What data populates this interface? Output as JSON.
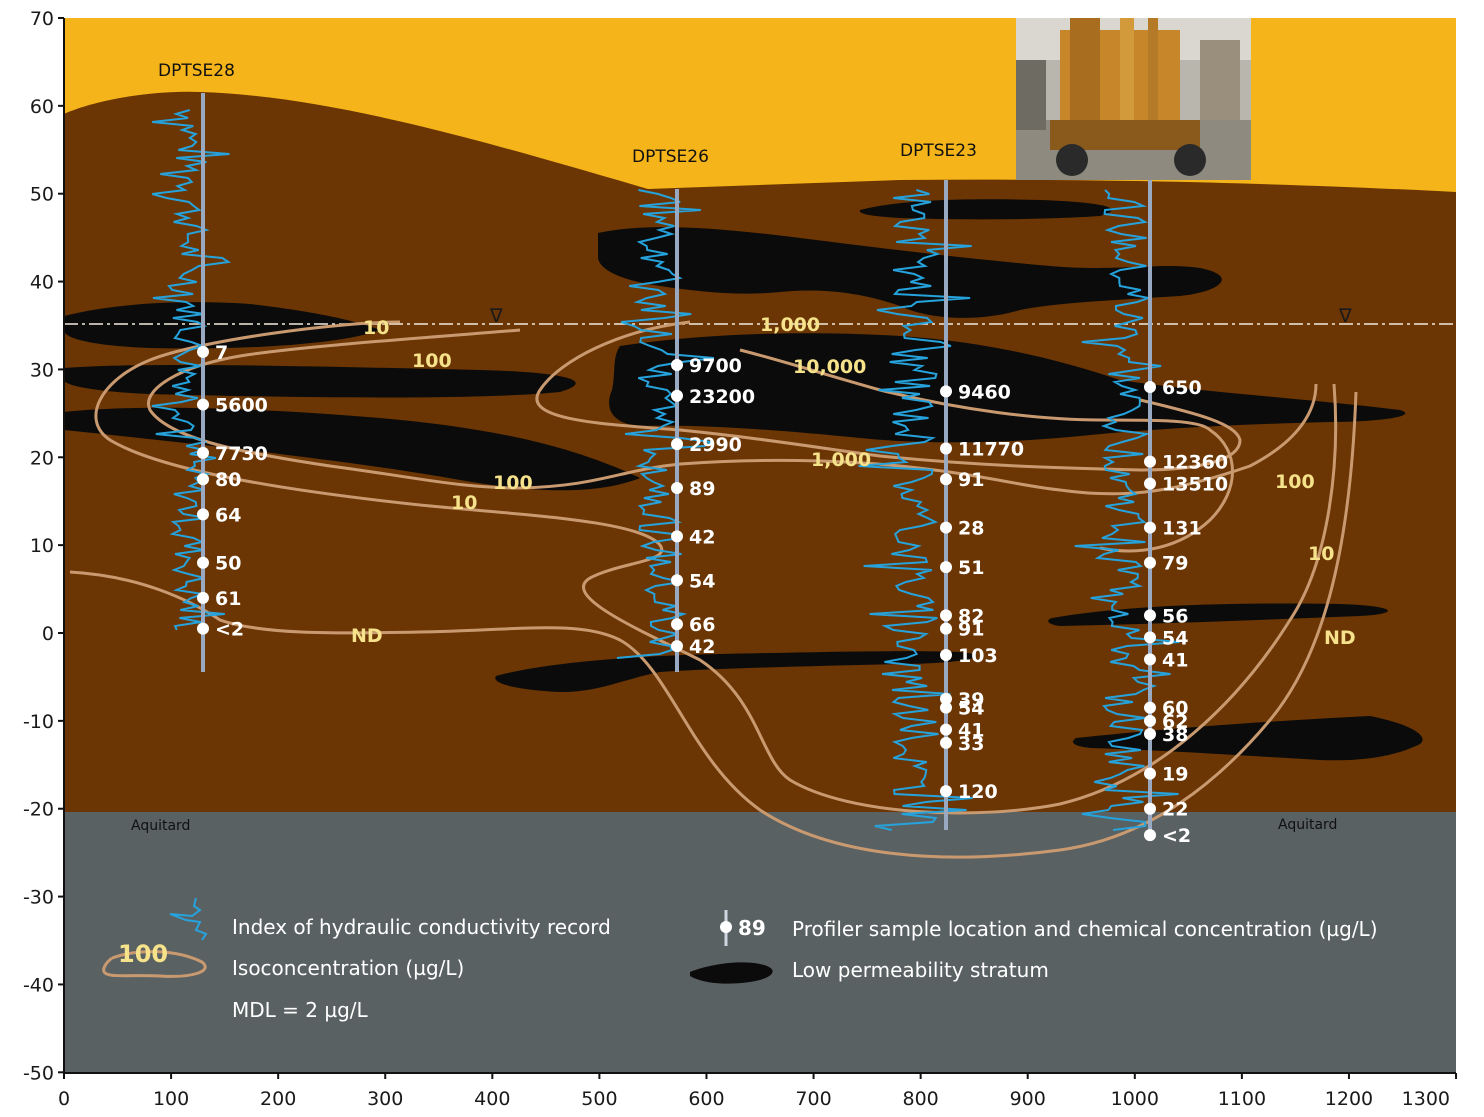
{
  "y_axis": {
    "ticks": [
      "70",
      "60",
      "50",
      "40",
      "30",
      "20",
      "10",
      "0",
      "-10",
      "-20",
      "-30",
      "-40",
      "-50"
    ]
  },
  "x_axis": {
    "ticks": [
      "0",
      "100",
      "200",
      "300",
      "400",
      "500",
      "600",
      "700",
      "800",
      "900",
      "1000",
      "1100",
      "1200",
      "1300"
    ]
  },
  "colors": {
    "surface_fill": "#f5b41a",
    "subsurface_fill": "#6b3504",
    "aquitard_fill": "#5a6163",
    "low_perm_fill": "#0b0b0b",
    "iso_line": "#c99a70",
    "iso_label": "#f5e28a",
    "k_record": "#26a3dc",
    "well_line": "#9aa9c2"
  },
  "wells": [
    {
      "name": "DPTSE28",
      "samples": [
        {
          "depth": 32,
          "value": "7"
        },
        {
          "depth": 26,
          "value": "5600"
        },
        {
          "depth": 20.5,
          "value": "7730"
        },
        {
          "depth": 17.5,
          "value": "80"
        },
        {
          "depth": 13.5,
          "value": "64"
        },
        {
          "depth": 8,
          "value": "50"
        },
        {
          "depth": 4,
          "value": "61"
        },
        {
          "depth": 0.5,
          "value": "<2"
        }
      ]
    },
    {
      "name": "DPTSE26",
      "samples": [
        {
          "depth": 30.5,
          "value": "9700"
        },
        {
          "depth": 27,
          "value": "23200"
        },
        {
          "depth": 21.5,
          "value": "2990"
        },
        {
          "depth": 16.5,
          "value": "89"
        },
        {
          "depth": 11,
          "value": "42"
        },
        {
          "depth": 6,
          "value": "54"
        },
        {
          "depth": 1,
          "value": "66"
        },
        {
          "depth": -1.5,
          "value": "42"
        }
      ]
    },
    {
      "name": "DPTSE23",
      "samples": [
        {
          "depth": 27.5,
          "value": "9460"
        },
        {
          "depth": 21,
          "value": "11770"
        },
        {
          "depth": 17.5,
          "value": "91"
        },
        {
          "depth": 12,
          "value": "28"
        },
        {
          "depth": 7.5,
          "value": "51"
        },
        {
          "depth": 2,
          "value": "82"
        },
        {
          "depth": 0.5,
          "value": "91"
        },
        {
          "depth": -2.5,
          "value": "103"
        },
        {
          "depth": -7.5,
          "value": "39"
        },
        {
          "depth": -8.5,
          "value": "54"
        },
        {
          "depth": -11,
          "value": "41"
        },
        {
          "depth": -12.5,
          "value": "33"
        },
        {
          "depth": -18,
          "value": "120"
        }
      ]
    },
    {
      "name": "",
      "samples": [
        {
          "depth": 28,
          "value": "650"
        },
        {
          "depth": 19.5,
          "value": "12360"
        },
        {
          "depth": 17,
          "value": "13510"
        },
        {
          "depth": 12,
          "value": "131"
        },
        {
          "depth": 8,
          "value": "79"
        },
        {
          "depth": 2,
          "value": "56"
        },
        {
          "depth": -0.5,
          "value": "54"
        },
        {
          "depth": -3,
          "value": "41"
        },
        {
          "depth": -8.5,
          "value": "60"
        },
        {
          "depth": -10,
          "value": "62"
        },
        {
          "depth": -11.5,
          "value": "38"
        },
        {
          "depth": -16,
          "value": "19"
        },
        {
          "depth": -20,
          "value": "22"
        },
        {
          "depth": -23,
          "value": "<2"
        }
      ]
    }
  ],
  "isoconcentration_labels": [
    "10",
    "100",
    "1,000",
    "10,000",
    "1,000",
    "100",
    "10",
    "ND",
    "100",
    "10",
    "ND"
  ],
  "aquitard_labels": [
    "Aquitard",
    "Aquitard"
  ],
  "water_table_symbols": [
    "∇",
    "∇"
  ],
  "legend": {
    "k_record": "Index of hydraulic conductivity record",
    "iso_sample_value": "100",
    "iso": "Isoconcentration (µg/L)",
    "mdl": "MDL = 2 µg/L",
    "profiler_value": "89",
    "profiler": "Profiler sample location and chemical concentration (µg/L)",
    "low_perm": "Low permeability stratum"
  }
}
